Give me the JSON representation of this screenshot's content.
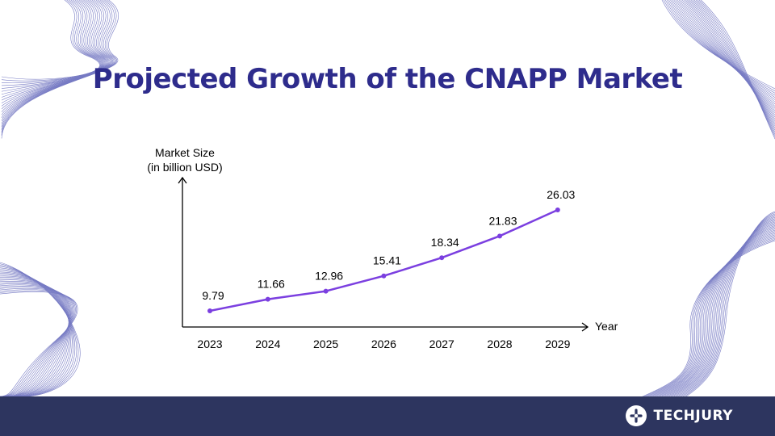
{
  "title": "Projected Growth of the CNAPP Market",
  "brand": {
    "name": "TECHJURY",
    "logo_icon": "techjury-logo-icon"
  },
  "colors": {
    "title": "#2e2c8c",
    "line": "#7b3fe0",
    "axis": "#000000",
    "footer": "#2d355f",
    "decor": "#4a4fb0"
  },
  "chart_data": {
    "type": "line",
    "categories": [
      "2023",
      "2024",
      "2025",
      "2026",
      "2027",
      "2028",
      "2029"
    ],
    "values": [
      9.79,
      11.66,
      12.96,
      15.41,
      18.34,
      21.83,
      26.03
    ],
    "data_labels": [
      "9.79",
      "11.66",
      "12.96",
      "15.41",
      "18.34",
      "21.83",
      "26.03"
    ],
    "ylabel": [
      "Market Size",
      "(in billion USD)"
    ],
    "xlabel": "Year",
    "ylim": [
      0,
      35
    ],
    "grid": false
  }
}
